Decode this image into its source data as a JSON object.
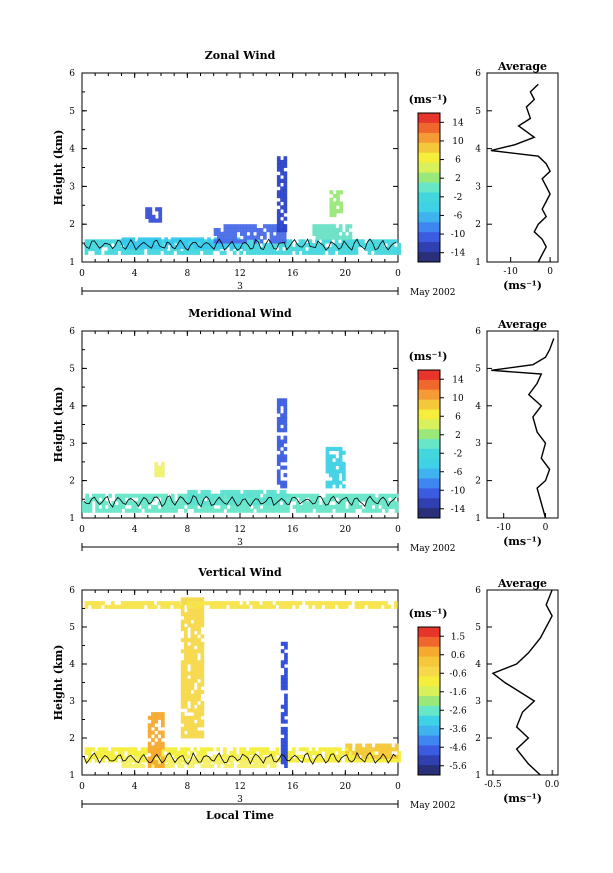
{
  "figure": {
    "date_label": "May 2002",
    "day_label": "3",
    "xlabel": "Local Time",
    "x_ticks": [
      "0",
      "4",
      "8",
      "12",
      "16",
      "20",
      "0"
    ],
    "avg_title": "Average",
    "units": "(ms⁻¹)",
    "ylabel": "Height (km)"
  },
  "chart_data": [
    {
      "type": "heatmap",
      "title": "Zonal Wind",
      "xlabel": "",
      "ylabel": "Height (km)",
      "x_range": [
        0,
        24
      ],
      "y_range": [
        1,
        6
      ],
      "y_ticks": [
        "1",
        "2",
        "3",
        "4",
        "5",
        "6"
      ],
      "colorbar": {
        "label": "(ms⁻¹)",
        "range": [
          -16,
          16
        ],
        "ticks": [
          "14",
          "10",
          "6",
          "2",
          "-2",
          "-6",
          "-10",
          "-14"
        ]
      },
      "average_profile": {
        "title": "Average",
        "xlabel": "(ms⁻¹)",
        "x_range": [
          -16,
          2
        ],
        "x_ticks": [
          "-10",
          "0"
        ],
        "points": [
          [
            -3,
            1.0
          ],
          [
            -2,
            1.2
          ],
          [
            -1,
            1.4
          ],
          [
            -2,
            1.6
          ],
          [
            -4,
            1.8
          ],
          [
            -3,
            2.0
          ],
          [
            -1,
            2.2
          ],
          [
            -2,
            2.4
          ],
          [
            -1,
            2.6
          ],
          [
            0,
            2.8
          ],
          [
            -1,
            3.0
          ],
          [
            -2,
            3.2
          ],
          [
            0,
            3.4
          ],
          [
            -1,
            3.6
          ],
          [
            -3,
            3.8
          ],
          [
            -15,
            3.95
          ],
          [
            -9,
            4.1
          ],
          [
            -4,
            4.3
          ],
          [
            -8,
            4.6
          ],
          [
            -5,
            4.8
          ],
          [
            -6,
            5.1
          ],
          [
            -4,
            5.3
          ],
          [
            -5,
            5.5
          ],
          [
            -3,
            5.7
          ]
        ]
      },
      "blobs": [
        {
          "x0": 0.2,
          "x1": 24,
          "y0": 1.2,
          "y1": 1.6,
          "color": "#43d7dd"
        },
        {
          "x0": 3,
          "x1": 12,
          "y0": 1.35,
          "y1": 1.65,
          "color": "#37c8ee"
        },
        {
          "x0": 4.8,
          "x1": 6,
          "y0": 2.1,
          "y1": 2.45,
          "color": "#3850d8"
        },
        {
          "x0": 10,
          "x1": 15.5,
          "y0": 1.55,
          "y1": 2.0,
          "color": "#4a6be8"
        },
        {
          "x0": 14.8,
          "x1": 15.4,
          "y0": 1.8,
          "y1": 3.8,
          "color": "#2a42c8"
        },
        {
          "x0": 18.8,
          "x1": 19.6,
          "y0": 2.2,
          "y1": 2.9,
          "color": "#9be87a"
        },
        {
          "x0": 17.5,
          "x1": 20.5,
          "y0": 1.6,
          "y1": 2.0,
          "color": "#6ae0c5"
        }
      ]
    },
    {
      "type": "heatmap",
      "title": "Meridional Wind",
      "xlabel": "",
      "ylabel": "Height (km)",
      "x_range": [
        0,
        24
      ],
      "y_range": [
        1,
        6
      ],
      "y_ticks": [
        "1",
        "2",
        "3",
        "4",
        "5",
        "6"
      ],
      "colorbar": {
        "label": "(ms⁻¹)",
        "range": [
          -16,
          16
        ],
        "ticks": [
          "14",
          "10",
          "6",
          "2",
          "-2",
          "-6",
          "-10",
          "-14"
        ]
      },
      "average_profile": {
        "title": "Average",
        "xlabel": "(ms⁻¹)",
        "x_range": [
          -14,
          3
        ],
        "x_ticks": [
          "-10",
          "0"
        ],
        "points": [
          [
            0,
            1.0
          ],
          [
            -1,
            1.4
          ],
          [
            -2,
            1.8
          ],
          [
            0,
            2.0
          ],
          [
            1,
            2.3
          ],
          [
            -1,
            2.6
          ],
          [
            0,
            3.0
          ],
          [
            -2,
            3.3
          ],
          [
            -3,
            3.7
          ],
          [
            -1,
            4.0
          ],
          [
            -4,
            4.3
          ],
          [
            -2,
            4.6
          ],
          [
            -1,
            4.85
          ],
          [
            -13,
            4.95
          ],
          [
            -3,
            5.1
          ],
          [
            0,
            5.3
          ],
          [
            1,
            5.5
          ],
          [
            2,
            5.8
          ]
        ]
      },
      "blobs": [
        {
          "x0": 0,
          "x1": 24,
          "y0": 1.2,
          "y1": 1.65,
          "color": "#67e6c8"
        },
        {
          "x0": 8,
          "x1": 15.5,
          "y0": 1.4,
          "y1": 1.75,
          "color": "#5ce0d0"
        },
        {
          "x0": 14.8,
          "x1": 15.4,
          "y0": 1.8,
          "y1": 4.2,
          "color": "#3b5ce0"
        },
        {
          "x0": 18.5,
          "x1": 19.8,
          "y0": 1.8,
          "y1": 2.9,
          "color": "#3fd1e6"
        },
        {
          "x0": 5.5,
          "x1": 6,
          "y0": 2.1,
          "y1": 2.5,
          "color": "#f2f070"
        }
      ]
    },
    {
      "type": "heatmap",
      "title": "Vertical Wind",
      "xlabel": "Local Time",
      "ylabel": "Height (km)",
      "x_range": [
        0,
        24
      ],
      "y_range": [
        1,
        6
      ],
      "y_ticks": [
        "1",
        "2",
        "3",
        "4",
        "5",
        "6"
      ],
      "colorbar": {
        "label": "(ms⁻¹)",
        "range": [
          -6,
          2
        ],
        "ticks": [
          "1.5",
          "0.6",
          "-0.6",
          "-1.6",
          "-2.6",
          "-3.6",
          "-4.6",
          "-5.6"
        ]
      },
      "average_profile": {
        "title": "Average",
        "xlabel": "(ms⁻¹)",
        "x_range": [
          -0.55,
          0.05
        ],
        "x_ticks": [
          "-0.5",
          "0.0"
        ],
        "points": [
          [
            -0.1,
            1.0
          ],
          [
            -0.2,
            1.3
          ],
          [
            -0.3,
            1.7
          ],
          [
            -0.2,
            2.0
          ],
          [
            -0.3,
            2.3
          ],
          [
            -0.25,
            2.7
          ],
          [
            -0.15,
            3.0
          ],
          [
            -0.3,
            3.3
          ],
          [
            -0.4,
            3.5
          ],
          [
            -0.5,
            3.75
          ],
          [
            -0.3,
            4.0
          ],
          [
            -0.2,
            4.3
          ],
          [
            -0.1,
            4.7
          ],
          [
            -0.05,
            5.0
          ],
          [
            0.0,
            5.3
          ],
          [
            -0.05,
            5.6
          ],
          [
            0.0,
            6.0
          ]
        ]
      },
      "blobs": [
        {
          "x0": 0.2,
          "x1": 24,
          "y0": 1.4,
          "y1": 1.75,
          "color": "#f5ee3a"
        },
        {
          "x0": 3,
          "x1": 14.5,
          "y0": 1.2,
          "y1": 1.5,
          "color": "#f6f06a"
        },
        {
          "x0": 5,
          "x1": 6,
          "y0": 1.2,
          "y1": 2.7,
          "color": "#f5a92e"
        },
        {
          "x0": 7.5,
          "x1": 9,
          "y0": 2.0,
          "y1": 5.8,
          "color": "#f7d84a"
        },
        {
          "x0": 15.1,
          "x1": 15.4,
          "y0": 1.2,
          "y1": 4.6,
          "color": "#2a4ad8"
        },
        {
          "x0": 0.2,
          "x1": 24,
          "y0": 5.5,
          "y1": 5.7,
          "color": "#f7e44a"
        },
        {
          "x0": 20,
          "x1": 24,
          "y0": 1.5,
          "y1": 1.85,
          "color": "#f5c83a"
        }
      ]
    }
  ]
}
